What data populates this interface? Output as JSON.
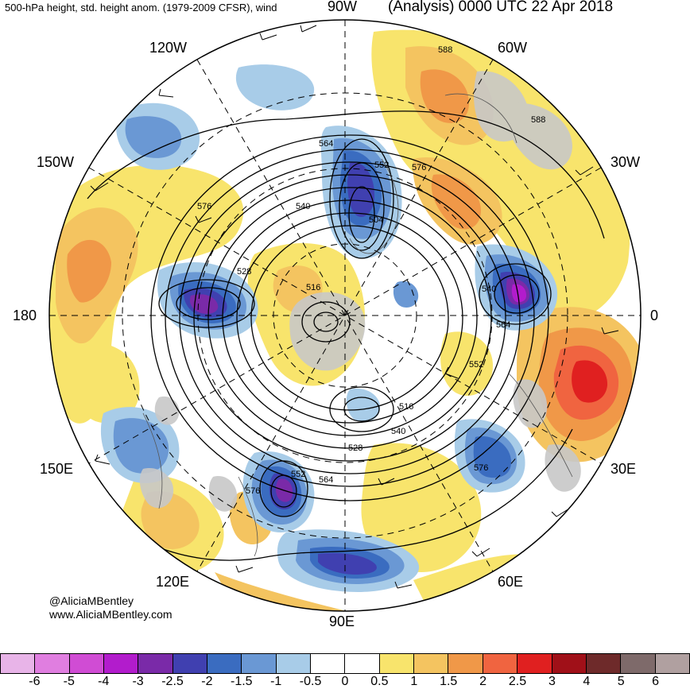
{
  "header": {
    "left_title": "500-hPa height, std. height anom. (1979-2009 CFSR), wind",
    "right_title": "(Analysis) 0000 UTC 22 Apr 2018"
  },
  "longitude_labels": {
    "top": "90W",
    "top_left": "120W",
    "top_right": "60W",
    "upper_left": "150W",
    "upper_right": "30W",
    "left": "180",
    "right": "0",
    "lower_left": "150E",
    "lower_right": "30E",
    "bottom_left": "120E",
    "bottom_right": "60E",
    "bottom": "90E"
  },
  "contour_labels": [
    "588",
    "588",
    "576",
    "564",
    "552",
    "540",
    "504",
    "528",
    "516",
    "540",
    "564",
    "552",
    "516",
    "540",
    "528",
    "552",
    "564",
    "576",
    "576",
    "576"
  ],
  "credits": {
    "handle": "@AliciaMBentley",
    "website": "www.AliciaMBentley.com"
  },
  "colorbar": {
    "colors": [
      "#e8b4e8",
      "#e07ee0",
      "#d04cd4",
      "#b21ccc",
      "#7a2aa8",
      "#4040b0",
      "#3a6cc0",
      "#6a98d4",
      "#a8cce8",
      "#ffffff",
      "#ffffff",
      "#f8e46c",
      "#f4c460",
      "#f09848",
      "#f06440",
      "#e02020",
      "#a01018",
      "#6e2a2a",
      "#7e6a6a",
      "#b0a0a0"
    ],
    "ticks": [
      "-6",
      "-5",
      "-4",
      "-3",
      "-2.5",
      "-2",
      "-1.5",
      "-1",
      "-0.5",
      "0",
      "0.5",
      "1",
      "1.5",
      "2",
      "2.5",
      "3",
      "4",
      "5",
      "6"
    ]
  }
}
